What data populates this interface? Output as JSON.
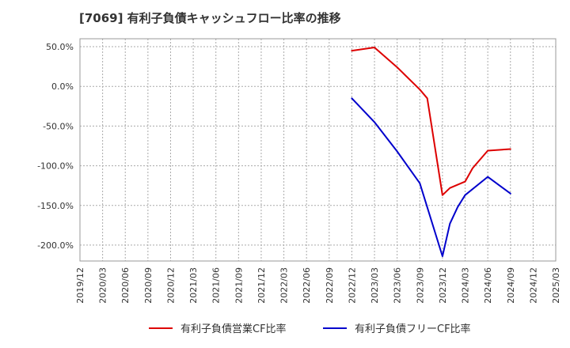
{
  "chart_data": {
    "type": "line",
    "title": "[7069]  有利子負債キャッシュフロー比率の推移",
    "xlabel": "",
    "ylabel": "",
    "ylim": [
      -220,
      60
    ],
    "y_ticks": [
      50,
      0,
      -50,
      -100,
      -150,
      -200
    ],
    "y_tick_labels": [
      "50.0%",
      "0.0%",
      "-50.0%",
      "-100.0%",
      "-150.0%",
      "-200.0%"
    ],
    "x_tick_labels": [
      "2019/12",
      "2020/03",
      "2020/06",
      "2020/09",
      "2020/12",
      "2021/03",
      "2021/06",
      "2021/09",
      "2021/12",
      "2022/03",
      "2022/06",
      "2022/09",
      "2022/12",
      "2023/03",
      "2023/06",
      "2023/09",
      "2023/12",
      "2024/03",
      "2024/06",
      "2024/09",
      "2024/12",
      "2025/03"
    ],
    "grid": true,
    "legend_position": "bottom",
    "series": [
      {
        "name": "有利子負債営業CF比率",
        "color": "#dd0000",
        "points": [
          {
            "x": 12,
            "y": 45
          },
          {
            "x": 13,
            "y": 49
          },
          {
            "x": 14,
            "y": 24
          },
          {
            "x": 15,
            "y": -4
          },
          {
            "x": 15.33,
            "y": -15
          },
          {
            "x": 16,
            "y": -137
          },
          {
            "x": 16.33,
            "y": -128
          },
          {
            "x": 17,
            "y": -120
          },
          {
            "x": 17.33,
            "y": -103
          },
          {
            "x": 18,
            "y": -81
          },
          {
            "x": 19,
            "y": -79
          }
        ]
      },
      {
        "name": "有利子負債フリーCF比率",
        "color": "#0000cc",
        "points": [
          {
            "x": 12,
            "y": -15
          },
          {
            "x": 13,
            "y": -45
          },
          {
            "x": 14,
            "y": -82
          },
          {
            "x": 15,
            "y": -122
          },
          {
            "x": 16,
            "y": -214
          },
          {
            "x": 16.33,
            "y": -173
          },
          {
            "x": 16.67,
            "y": -152
          },
          {
            "x": 17,
            "y": -137
          },
          {
            "x": 18,
            "y": -114
          },
          {
            "x": 19,
            "y": -135
          }
        ]
      }
    ]
  }
}
